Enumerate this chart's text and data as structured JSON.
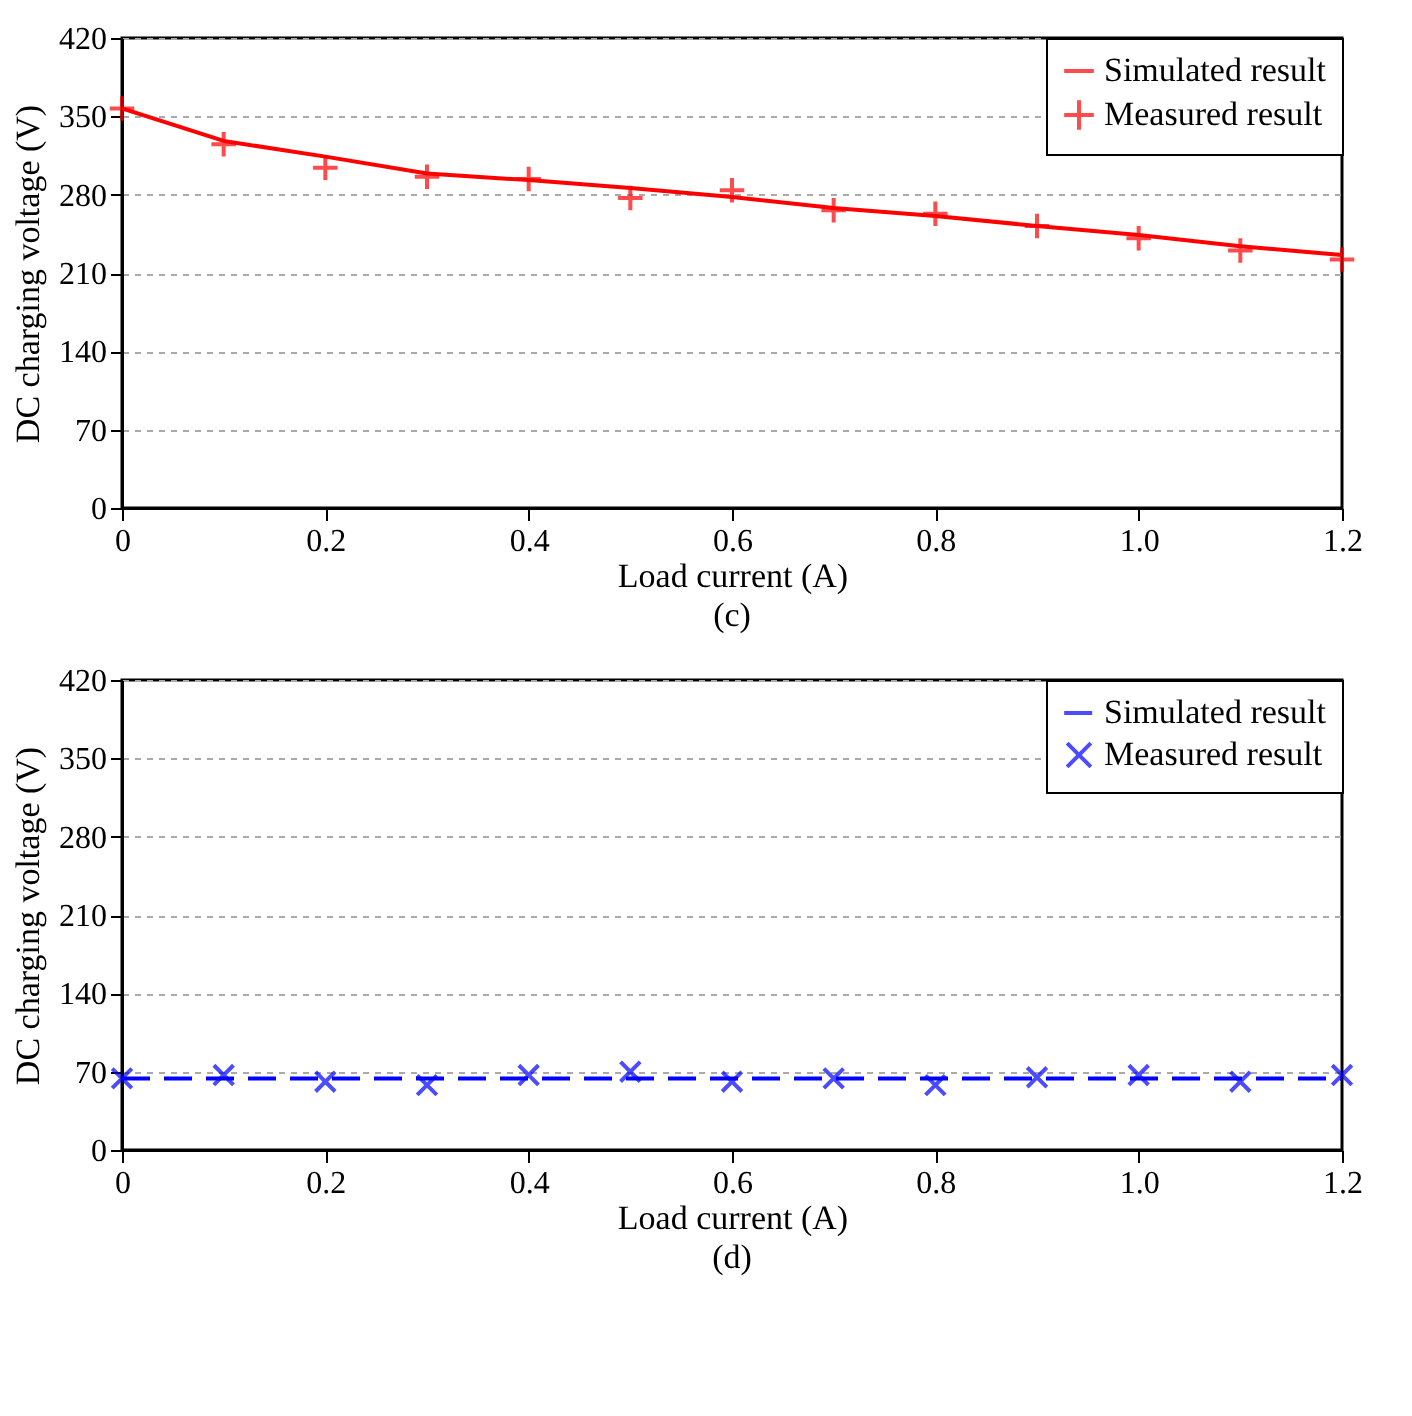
{
  "chart_data": [
    {
      "type": "line",
      "xlabel": "Load current (A)",
      "ylabel": "DC charging voltage (V)",
      "annotations": [
        "(c)"
      ],
      "x": [
        0,
        0.1,
        0.2,
        0.3,
        0.4,
        0.5,
        0.6,
        0.7,
        0.8,
        0.9,
        1.0,
        1.1,
        1.2
      ],
      "xlim": [
        0,
        1.2
      ],
      "xticks": [
        0,
        0.2,
        0.4,
        0.6,
        0.8,
        {
          "value": 1.0,
          "label": "1.0"
        },
        1.2
      ],
      "ylim": [
        0,
        420
      ],
      "yticks": [
        0,
        70,
        140,
        210,
        280,
        350,
        420
      ],
      "grid": "y",
      "legend": "top right",
      "series": [
        {
          "name": "Simulated result",
          "type": "line",
          "color": "#ff0000",
          "line_style": "solid",
          "marker": "none",
          "values": [
            357,
            328,
            314,
            299,
            293,
            286,
            278,
            268,
            261,
            252,
            244,
            234,
            226
          ]
        },
        {
          "name": "Measured result",
          "type": "scatter",
          "color": "#ff0000",
          "marker": "cross",
          "values": [
            357,
            325,
            304,
            296,
            294,
            277,
            284,
            266,
            263,
            252,
            241,
            230,
            222
          ]
        }
      ]
    },
    {
      "type": "line",
      "xlabel": "Load current (A)",
      "ylabel": "DC charging voltage (V)",
      "annotations": [
        "(d)"
      ],
      "x": [
        0,
        0.1,
        0.2,
        0.3,
        0.4,
        0.5,
        0.6,
        0.7,
        0.8,
        0.9,
        1.0,
        1.1,
        1.2
      ],
      "xlim": [
        0,
        1.2
      ],
      "xticks": [
        0,
        0.2,
        0.4,
        0.6,
        0.8,
        {
          "value": 1.0,
          "label": "1.0"
        },
        1.2
      ],
      "ylim": [
        0,
        420
      ],
      "yticks": [
        0,
        70,
        140,
        210,
        280,
        350,
        420
      ],
      "grid": "y",
      "legend": "top right",
      "series": [
        {
          "name": "Simulated result",
          "type": "line",
          "color": "#0000ff",
          "line_style": "dashed",
          "marker": "none",
          "values": [
            64,
            64,
            64,
            64,
            64,
            64,
            64,
            64,
            64,
            64,
            64,
            64,
            64
          ]
        },
        {
          "name": "Measured result",
          "type": "scatter",
          "color": "#0000ff",
          "marker": "x",
          "values": [
            64,
            67,
            61,
            58,
            67,
            70,
            61,
            64,
            58,
            65,
            67,
            61,
            67
          ]
        }
      ]
    }
  ]
}
